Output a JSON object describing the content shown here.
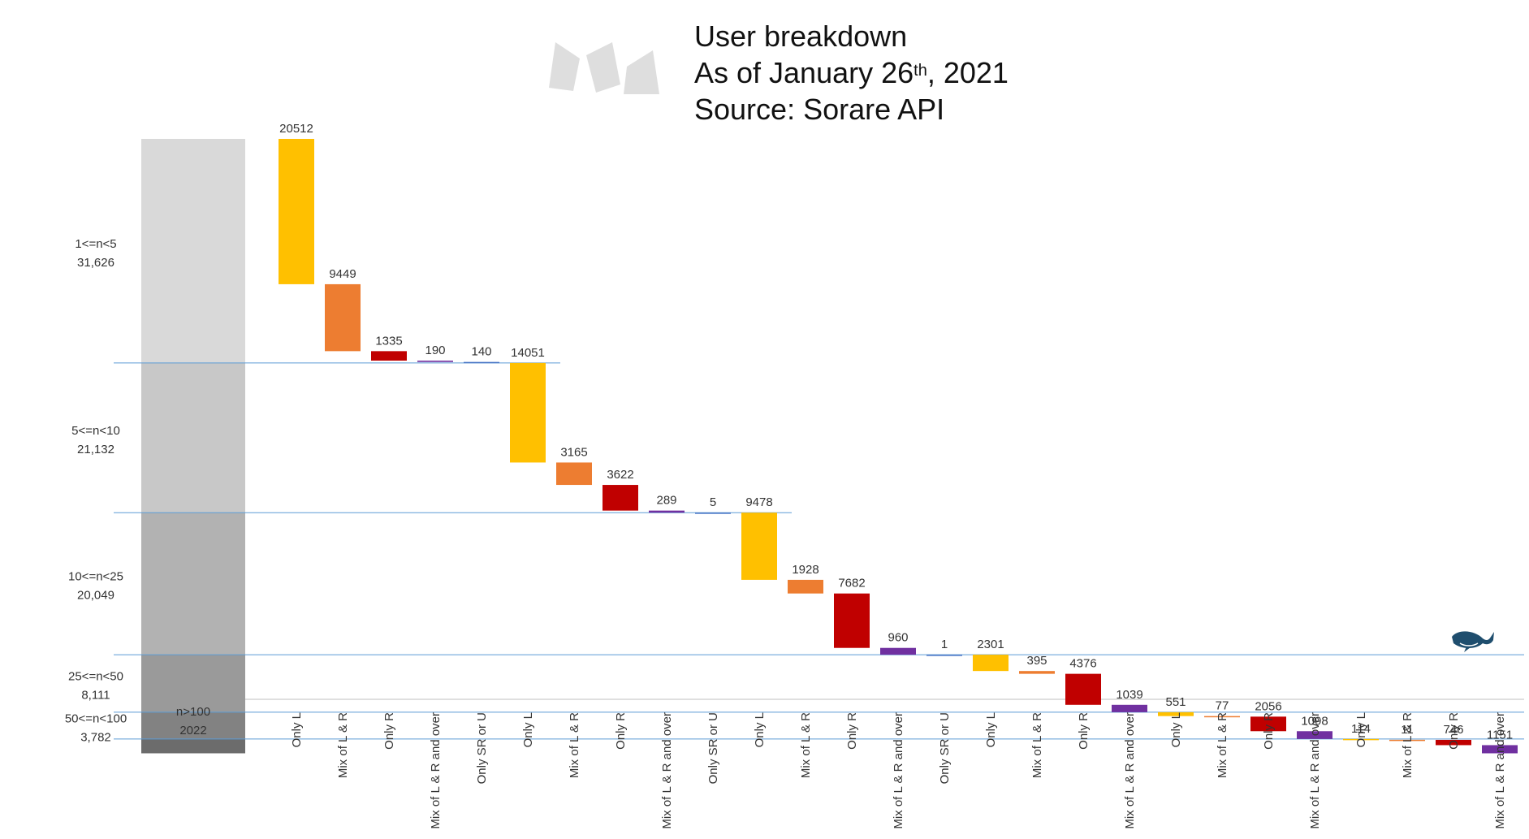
{
  "title": {
    "line1": "User breakdown",
    "line2_prefix": "As of January 26",
    "line2_sup": "th",
    "line2_suffix": ", 2021",
    "line3": "Source: Sorare API"
  },
  "colors": {
    "Only L": "#FFC000",
    "Mix of L & R": "#ED7D31",
    "Only R": "#C00000",
    "Mix of L & R and over": "#7030A0",
    "Only SR or U": "#4472C4",
    "band_line": "#5B9BD5",
    "stack_segments": [
      "#d9d9d9",
      "#c8c8c8",
      "#b2b2b2",
      "#9a9a9a",
      "#828282",
      "#6c6c6c"
    ]
  },
  "icons": {
    "logo": "sorare-logo-icon",
    "whale": "whale-icon"
  },
  "chart_data": {
    "type": "waterfall",
    "title": "User breakdown",
    "y_scale_total": 79100,
    "stack_groups": [
      {
        "label": "1<=n<5",
        "total_label": "31,626",
        "total": 31626
      },
      {
        "label": "5<=n<10",
        "total_label": "21,132",
        "total": 21132
      },
      {
        "label": "10<=n<25",
        "total_label": "20,049",
        "total": 20049
      },
      {
        "label": "25<=n<50",
        "total_label": "8,111",
        "total": 8111
      },
      {
        "label": "50<=n<100",
        "total_label": "3,782",
        "total": 3782
      },
      {
        "label": "n>100",
        "total_label": "2022",
        "total": 2022
      }
    ],
    "bars": [
      {
        "category": "Only L",
        "value": 20512,
        "group": 0
      },
      {
        "category": "Mix of L & R",
        "value": 9449,
        "group": 0
      },
      {
        "category": "Only R",
        "value": 1335,
        "group": 0
      },
      {
        "category": "Mix of L & R and over",
        "value": 190,
        "group": 0
      },
      {
        "category": "Only SR or U",
        "value": 140,
        "group": 0
      },
      {
        "category": "Only L",
        "value": 14051,
        "group": 1
      },
      {
        "category": "Mix of L & R",
        "value": 3165,
        "group": 1
      },
      {
        "category": "Only R",
        "value": 3622,
        "group": 1
      },
      {
        "category": "Mix of L & R and over",
        "value": 289,
        "group": 1
      },
      {
        "category": "Only SR or U",
        "value": 5,
        "group": 1
      },
      {
        "category": "Only L",
        "value": 9478,
        "group": 2
      },
      {
        "category": "Mix of L & R",
        "value": 1928,
        "group": 2
      },
      {
        "category": "Only R",
        "value": 7682,
        "group": 2
      },
      {
        "category": "Mix of L & R and over",
        "value": 960,
        "group": 2
      },
      {
        "category": "Only SR or U",
        "value": 1,
        "group": 2
      },
      {
        "category": "Only L",
        "value": 2301,
        "group": 3
      },
      {
        "category": "Mix of L & R",
        "value": 395,
        "group": 3
      },
      {
        "category": "Only R",
        "value": 4376,
        "group": 3
      },
      {
        "category": "Mix of L & R and over",
        "value": 1039,
        "group": 3
      },
      {
        "category": "Only L",
        "value": 551,
        "group": 4
      },
      {
        "category": "Mix of L & R",
        "value": 77,
        "group": 4
      },
      {
        "category": "Only R",
        "value": 2056,
        "group": 4
      },
      {
        "category": "Mix of L & R and over",
        "value": 1098,
        "group": 4
      },
      {
        "category": "Only L",
        "value": 114,
        "group": 5
      },
      {
        "category": "Mix of L & R",
        "value": 11,
        "group": 5
      },
      {
        "category": "Only R",
        "value": 746,
        "group": 5
      },
      {
        "category": "Mix of L & R and over",
        "value": 1151,
        "group": 5
      }
    ]
  }
}
